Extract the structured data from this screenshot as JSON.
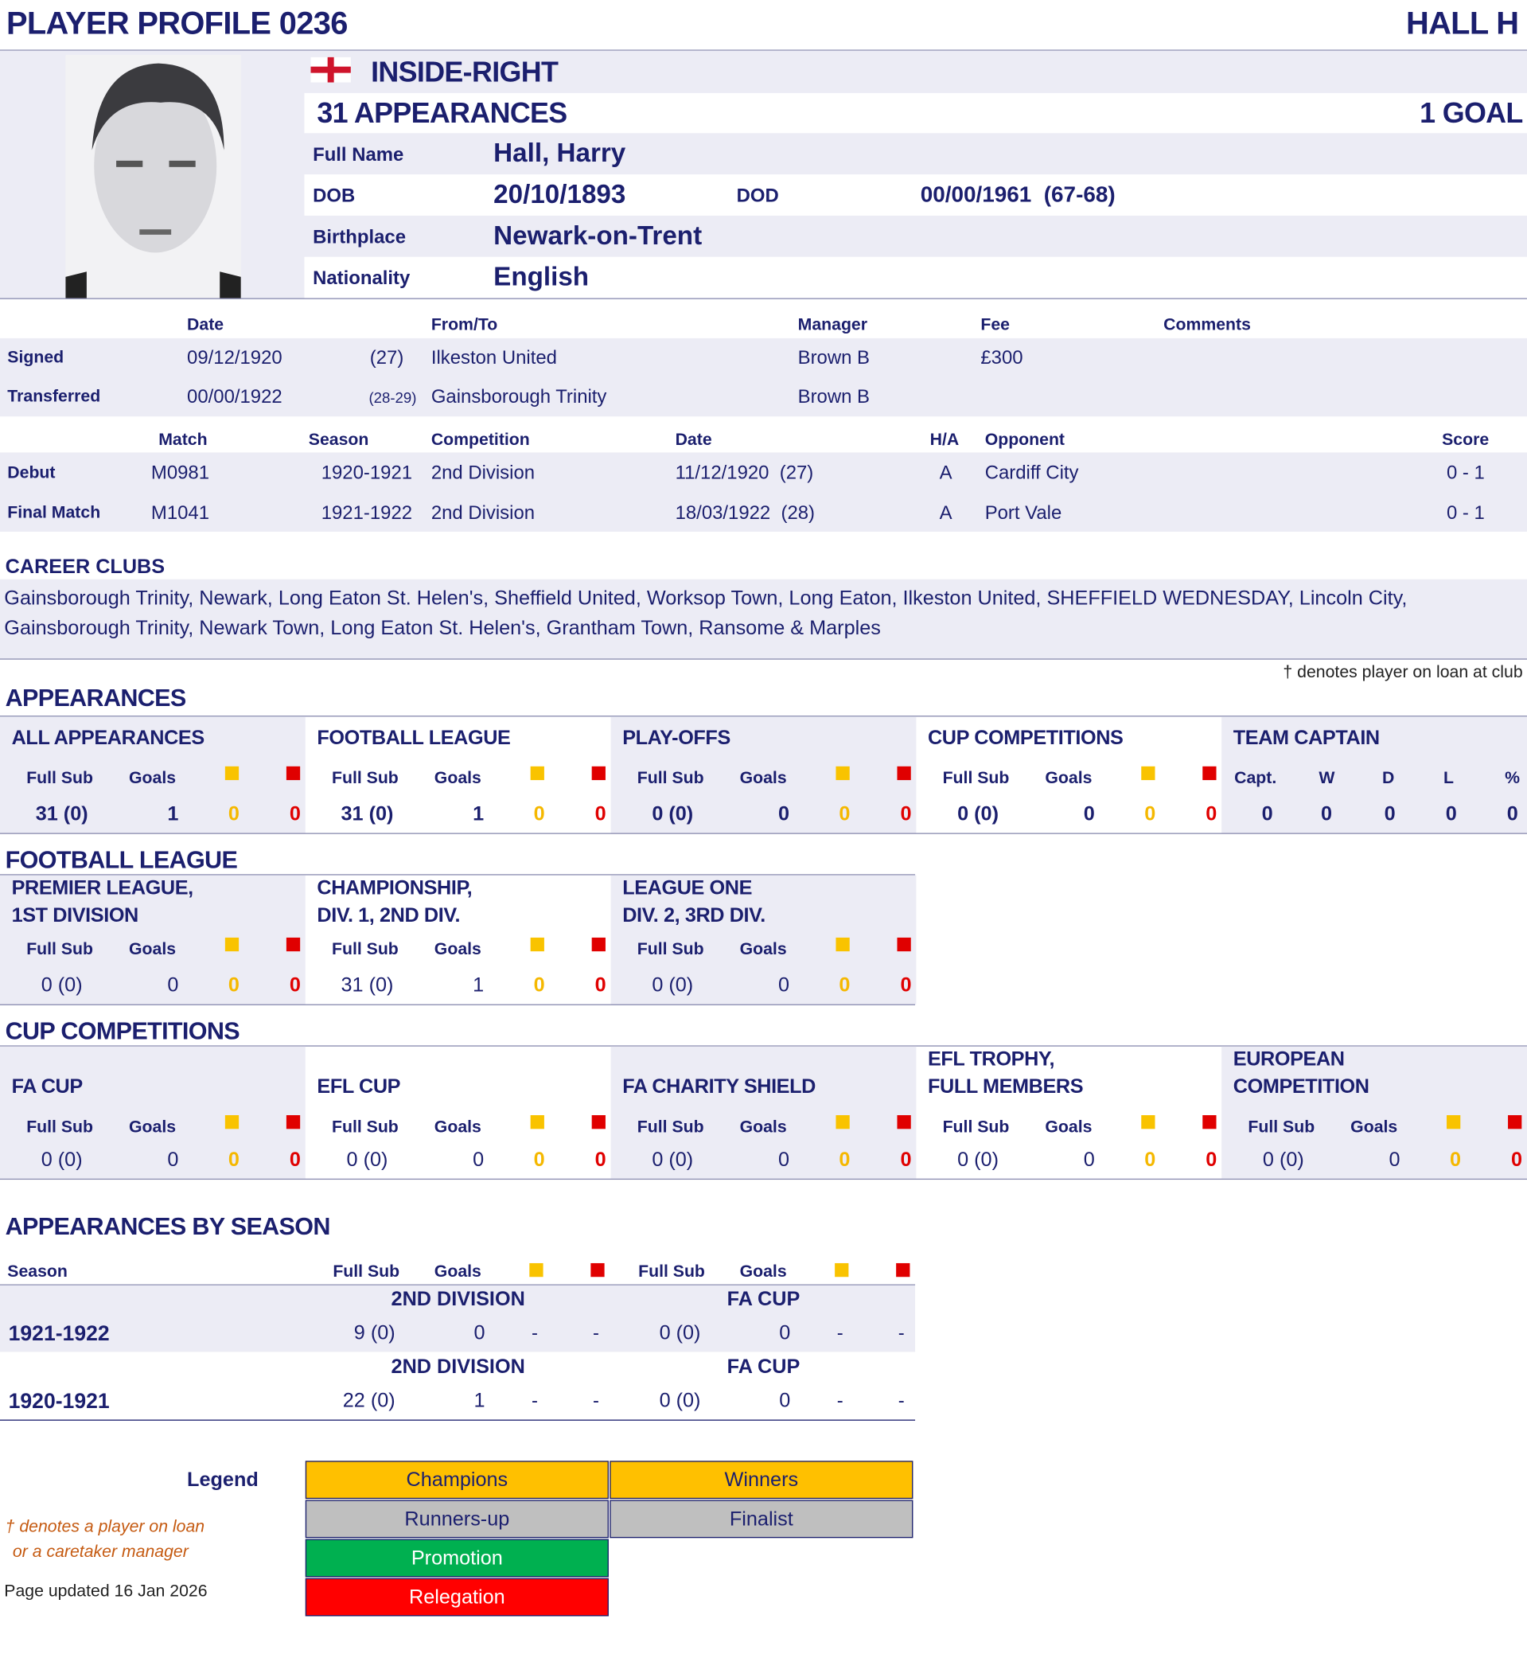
{
  "header": {
    "title": "PLAYER PROFILE 0236",
    "short_name": "HALL H"
  },
  "profile": {
    "flag_icon": "england-flag-icon",
    "position": "INSIDE-RIGHT",
    "appearances": "31 APPEARANCES",
    "goals": "1 GOAL",
    "labels": {
      "full_name": "Full Name",
      "dob": "DOB",
      "dod": "DOD",
      "birthplace": "Birthplace",
      "nationality": "Nationality"
    },
    "full_name": "Hall, Harry",
    "dob": "20/10/1893",
    "dod": "00/00/1961  (67-68)",
    "birthplace": "Newark-on-Trent",
    "nationality": "English"
  },
  "transfers": {
    "headers": [
      "Date",
      "From/To",
      "Manager",
      "Fee",
      "Comments"
    ],
    "rows": [
      {
        "label": "Signed",
        "date": "09/12/1920",
        "age": "(27)",
        "club": "Ilkeston United",
        "manager": "Brown B",
        "fee": "£300",
        "comments": ""
      },
      {
        "label": "Transferred",
        "date": "00/00/1922",
        "age": "(28-29)",
        "club": "Gainsborough Trinity",
        "manager": "Brown B",
        "fee": "",
        "comments": ""
      }
    ]
  },
  "matches": {
    "headers": [
      "Match",
      "Season",
      "Competition",
      "Date",
      "H/A",
      "Opponent",
      "Score"
    ],
    "rows": [
      {
        "label": "Debut",
        "match": "M0981",
        "season": "1920-1921",
        "competition": "2nd Division",
        "date": "11/12/1920  (27)",
        "ha": "A",
        "opponent": "Cardiff City",
        "score": "0 - 1"
      },
      {
        "label": "Final Match",
        "match": "M1041",
        "season": "1921-1922",
        "competition": "2nd Division",
        "date": "18/03/1922  (28)",
        "ha": "A",
        "opponent": "Port Vale",
        "score": "0 - 1"
      }
    ]
  },
  "career": {
    "title": "CAREER CLUBS",
    "text": "Gainsborough Trinity, Newark, Long Eaton St. Helen's, Sheffield United, Worksop Town, Long Eaton, Ilkeston United, SHEFFIELD WEDNESDAY, Lincoln City, Gainsborough Trinity, Newark Town, Long Eaton St. Helen's, Grantham Town, Ransome & Marples"
  },
  "loan_note": "† denotes player on loan at club",
  "stat_headers": {
    "full_sub": "Full Sub",
    "goals": "Goals"
  },
  "appearances": {
    "title": "APPEARANCES",
    "blocks": [
      {
        "title": "ALL APPEARANCES",
        "full_sub": "31 (0)",
        "goals": "1",
        "yellow": "0",
        "red": "0"
      },
      {
        "title": "FOOTBALL LEAGUE",
        "full_sub": "31 (0)",
        "goals": "1",
        "yellow": "0",
        "red": "0"
      },
      {
        "title": "PLAY-OFFS",
        "full_sub": "0 (0)",
        "goals": "0",
        "yellow": "0",
        "red": "0"
      },
      {
        "title": "CUP COMPETITIONS",
        "full_sub": "0 (0)",
        "goals": "0",
        "yellow": "0",
        "red": "0"
      }
    ],
    "captain": {
      "title": "TEAM CAPTAIN",
      "headers": [
        "Capt.",
        "W",
        "D",
        "L",
        "%"
      ],
      "values": [
        "0",
        "0",
        "0",
        "0",
        "0"
      ]
    }
  },
  "football_league": {
    "title": "FOOTBALL LEAGUE",
    "blocks": [
      {
        "title": "PREMIER LEAGUE,\n1ST DIVISION",
        "full_sub": "0 (0)",
        "goals": "0",
        "yellow": "0",
        "red": "0"
      },
      {
        "title": "CHAMPIONSHIP,\nDIV. 1, 2ND DIV.",
        "full_sub": "31 (0)",
        "goals": "1",
        "yellow": "0",
        "red": "0"
      },
      {
        "title": "LEAGUE ONE\nDIV. 2, 3RD DIV.",
        "full_sub": "0 (0)",
        "goals": "0",
        "yellow": "0",
        "red": "0"
      }
    ]
  },
  "cup_competitions": {
    "title": "CUP COMPETITIONS",
    "blocks": [
      {
        "title": "FA CUP",
        "full_sub": "0 (0)",
        "goals": "0",
        "yellow": "0",
        "red": "0"
      },
      {
        "title": "EFL CUP",
        "full_sub": "0 (0)",
        "goals": "0",
        "yellow": "0",
        "red": "0"
      },
      {
        "title": "FA CHARITY SHIELD",
        "full_sub": "0 (0)",
        "goals": "0",
        "yellow": "0",
        "red": "0"
      },
      {
        "title": "EFL TROPHY,\nFULL MEMBERS",
        "full_sub": "0 (0)",
        "goals": "0",
        "yellow": "0",
        "red": "0"
      },
      {
        "title": "EUROPEAN\nCOMPETITION",
        "full_sub": "0 (0)",
        "goals": "0",
        "yellow": "0",
        "red": "0"
      }
    ]
  },
  "by_season": {
    "title": "APPEARANCES BY SEASON",
    "season_header": "Season",
    "rows": [
      {
        "season": "1921-1922",
        "comps": [
          {
            "name": "2ND DIVISION",
            "full_sub": "9 (0)",
            "goals": "0",
            "yellow": "-",
            "red": "-"
          },
          {
            "name": "FA CUP",
            "full_sub": "0 (0)",
            "goals": "0",
            "yellow": "-",
            "red": "-"
          }
        ]
      },
      {
        "season": "1920-1921",
        "comps": [
          {
            "name": "2ND DIVISION",
            "full_sub": "22 (0)",
            "goals": "1",
            "yellow": "-",
            "red": "-"
          },
          {
            "name": "FA CUP",
            "full_sub": "0 (0)",
            "goals": "0",
            "yellow": "-",
            "red": "-"
          }
        ]
      }
    ]
  },
  "legend": {
    "title": "Legend",
    "items": [
      {
        "label": "Champions",
        "color": "#ffc000"
      },
      {
        "label": "Winners",
        "color": "#ffc000"
      },
      {
        "label": "Runners-up",
        "color": "#bfbfbf"
      },
      {
        "label": "Finalist",
        "color": "#bfbfbf"
      },
      {
        "label": "Promotion",
        "color": "#00b050"
      },
      {
        "label": "Relegation",
        "color": "#ff0000"
      }
    ],
    "loan_note_1": "† denotes a player on loan",
    "loan_note_2": "or a caretaker manager",
    "updated": "Page updated 16 Jan 2026"
  }
}
